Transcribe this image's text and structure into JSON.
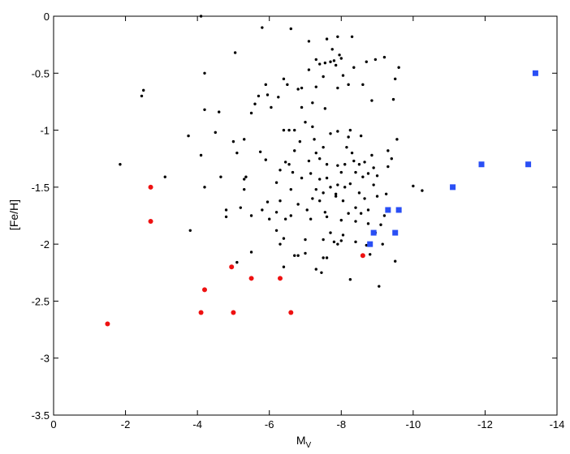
{
  "chart_data": {
    "type": "scatter",
    "title": "",
    "xlabel": "M",
    "xlabel_sub": "V",
    "ylabel": "[Fe/H]",
    "xlim": [
      0,
      -14
    ],
    "ylim": [
      -3.5,
      0
    ],
    "x_ticks": [
      0,
      -2,
      -4,
      -6,
      -8,
      -10,
      -12,
      -14
    ],
    "x_tick_labels": [
      "0",
      "-2",
      "-4",
      "-6",
      "-8",
      "-10",
      "-12",
      "-14"
    ],
    "y_ticks": [
      0,
      -0.5,
      -1,
      -1.5,
      -2,
      -2.5,
      -3,
      -3.5
    ],
    "y_tick_labels": [
      "0",
      "-0.5",
      "-1",
      "-1.5",
      "-2",
      "-2.5",
      "-3",
      "-3.5"
    ],
    "grid": false,
    "series": [
      {
        "color": "#000000",
        "marker": "circle",
        "size": 3,
        "points": [
          [
            -4.1,
            0.0
          ],
          [
            -5.8,
            -0.1
          ],
          [
            -6.6,
            -0.11
          ],
          [
            -7.1,
            -0.22
          ],
          [
            -7.6,
            -0.2
          ],
          [
            -7.9,
            -0.18
          ],
          [
            -8.3,
            -0.18
          ],
          [
            -5.05,
            -0.32
          ],
          [
            -7.75,
            -0.29
          ],
          [
            -7.95,
            -0.34
          ],
          [
            -7.8,
            -0.39
          ],
          [
            -8.0,
            -0.37
          ],
          [
            -7.3,
            -0.38
          ],
          [
            -8.95,
            -0.38
          ],
          [
            -9.2,
            -0.36
          ],
          [
            -7.1,
            -0.47
          ],
          [
            -7.4,
            -0.42
          ],
          [
            -7.55,
            -0.41
          ],
          [
            -7.7,
            -0.4
          ],
          [
            -7.85,
            -0.43
          ],
          [
            -8.35,
            -0.45
          ],
          [
            -8.7,
            -0.4
          ],
          [
            -9.6,
            -0.45
          ],
          [
            -7.5,
            -0.53
          ],
          [
            -8.05,
            -0.52
          ],
          [
            -9.5,
            -0.55
          ],
          [
            -2.5,
            -0.65
          ],
          [
            -2.45,
            -0.7
          ],
          [
            -4.2,
            -0.5
          ],
          [
            -6.4,
            -0.55
          ],
          [
            -6.5,
            -0.6
          ],
          [
            -5.9,
            -0.6
          ],
          [
            -6.9,
            -0.63
          ],
          [
            -7.3,
            -0.62
          ],
          [
            -7.9,
            -0.63
          ],
          [
            -8.2,
            -0.6
          ],
          [
            -8.6,
            -0.6
          ],
          [
            -9.45,
            -0.73
          ],
          [
            -8.85,
            -0.74
          ],
          [
            -6.8,
            -0.64
          ],
          [
            -6.25,
            -0.71
          ],
          [
            -5.7,
            -0.7
          ],
          [
            -5.95,
            -0.69
          ],
          [
            -5.6,
            -0.77
          ],
          [
            -7.2,
            -0.76
          ],
          [
            -7.55,
            -0.81
          ],
          [
            -6.05,
            -0.8
          ],
          [
            -6.9,
            -0.8
          ],
          [
            -4.2,
            -0.82
          ],
          [
            -4.6,
            -0.84
          ],
          [
            -5.5,
            -0.85
          ],
          [
            -3.75,
            -1.05
          ],
          [
            -4.5,
            -1.02
          ],
          [
            -6.4,
            -1.0
          ],
          [
            -6.55,
            -1.0
          ],
          [
            -6.7,
            -1.0
          ],
          [
            -7.0,
            -0.93
          ],
          [
            -7.2,
            -0.97
          ],
          [
            -7.7,
            -1.03
          ],
          [
            -7.9,
            -1.01
          ],
          [
            -8.2,
            -1.06
          ],
          [
            -8.25,
            -1.0
          ],
          [
            -8.55,
            -1.05
          ],
          [
            -9.55,
            -1.08
          ],
          [
            -5.0,
            -1.1
          ],
          [
            -5.3,
            -1.08
          ],
          [
            -6.85,
            -1.1
          ],
          [
            -7.25,
            -1.08
          ],
          [
            -7.5,
            -1.15
          ],
          [
            -6.7,
            -1.18
          ],
          [
            -8.15,
            -1.15
          ],
          [
            -8.3,
            -1.2
          ],
          [
            -9.3,
            -1.18
          ],
          [
            -9.4,
            -1.25
          ],
          [
            -7.3,
            -1.2
          ],
          [
            -7.1,
            -1.27
          ],
          [
            -7.4,
            -1.25
          ],
          [
            -7.6,
            -1.3
          ],
          [
            -7.9,
            -1.31
          ],
          [
            -8.1,
            -1.3
          ],
          [
            -8.35,
            -1.27
          ],
          [
            -8.5,
            -1.3
          ],
          [
            -8.85,
            -1.22
          ],
          [
            -1.85,
            -1.3
          ],
          [
            -4.1,
            -1.22
          ],
          [
            -5.1,
            -1.2
          ],
          [
            -5.75,
            -1.19
          ],
          [
            -5.9,
            -1.26
          ],
          [
            -6.45,
            -1.28
          ],
          [
            -6.55,
            -1.3
          ],
          [
            -8.65,
            -1.28
          ],
          [
            -8.9,
            -1.33
          ],
          [
            -9.3,
            -1.32
          ],
          [
            -4.65,
            -1.41
          ],
          [
            -5.35,
            -1.41
          ],
          [
            -5.3,
            -1.43
          ],
          [
            -6.3,
            -1.35
          ],
          [
            -6.65,
            -1.37
          ],
          [
            -6.2,
            -1.46
          ],
          [
            -6.9,
            -1.42
          ],
          [
            -7.15,
            -1.38
          ],
          [
            -7.4,
            -1.43
          ],
          [
            -7.6,
            -1.42
          ],
          [
            -8.0,
            -1.37
          ],
          [
            -8.4,
            -1.37
          ],
          [
            -8.6,
            -1.41
          ],
          [
            -8.75,
            -1.38
          ],
          [
            -9.0,
            -1.4
          ],
          [
            -3.1,
            -1.41
          ],
          [
            -4.2,
            -1.5
          ],
          [
            -5.3,
            -1.52
          ],
          [
            -6.6,
            -1.52
          ],
          [
            -7.3,
            -1.52
          ],
          [
            -7.5,
            -1.55
          ],
          [
            -7.7,
            -1.5
          ],
          [
            -7.9,
            -1.48
          ],
          [
            -8.1,
            -1.5
          ],
          [
            -8.25,
            -1.47
          ],
          [
            -8.9,
            -1.48
          ],
          [
            -10.0,
            -1.49
          ],
          [
            -10.25,
            -1.53
          ],
          [
            -6.3,
            -1.62
          ],
          [
            -6.8,
            -1.65
          ],
          [
            -7.2,
            -1.6
          ],
          [
            -7.4,
            -1.62
          ],
          [
            -7.85,
            -1.56
          ],
          [
            -7.85,
            -1.58
          ],
          [
            -8.05,
            -1.62
          ],
          [
            -8.5,
            -1.55
          ],
          [
            -8.65,
            -1.6
          ],
          [
            -9.0,
            -1.58
          ],
          [
            -9.25,
            -1.56
          ],
          [
            -5.95,
            -1.63
          ],
          [
            -5.2,
            -1.68
          ],
          [
            -4.8,
            -1.7
          ],
          [
            -5.8,
            -1.7
          ],
          [
            -6.2,
            -1.72
          ],
          [
            -7.05,
            -1.7
          ],
          [
            -7.55,
            -1.72
          ],
          [
            -8.2,
            -1.73
          ],
          [
            -8.4,
            -1.68
          ],
          [
            -8.55,
            -1.73
          ],
          [
            -8.75,
            -1.7
          ],
          [
            -9.2,
            -1.75
          ],
          [
            -4.8,
            -1.76
          ],
          [
            -5.5,
            -1.75
          ],
          [
            -6.0,
            -1.78
          ],
          [
            -6.45,
            -1.78
          ],
          [
            -6.6,
            -1.75
          ],
          [
            -7.15,
            -1.78
          ],
          [
            -7.6,
            -1.76
          ],
          [
            -8.0,
            -1.79
          ],
          [
            -8.4,
            -1.8
          ],
          [
            -8.75,
            -1.82
          ],
          [
            -9.1,
            -1.83
          ],
          [
            -3.8,
            -1.88
          ],
          [
            -6.2,
            -1.88
          ],
          [
            -7.7,
            -1.9
          ],
          [
            -8.05,
            -1.92
          ],
          [
            -6.4,
            -1.95
          ],
          [
            -7.0,
            -1.96
          ],
          [
            -7.5,
            -1.96
          ],
          [
            -7.8,
            -1.98
          ],
          [
            -8.0,
            -1.97
          ],
          [
            -8.4,
            -1.98
          ],
          [
            -8.7,
            -2.01
          ],
          [
            -6.3,
            -2.0
          ],
          [
            -7.9,
            -2.0
          ],
          [
            -8.95,
            -1.9
          ],
          [
            -9.15,
            -2.0
          ],
          [
            -8.8,
            -2.09
          ],
          [
            -9.5,
            -2.15
          ],
          [
            -5.5,
            -2.07
          ],
          [
            -5.1,
            -2.16
          ],
          [
            -6.7,
            -2.1
          ],
          [
            -6.8,
            -2.1
          ],
          [
            -7.0,
            -2.08
          ],
          [
            -7.5,
            -2.12
          ],
          [
            -7.6,
            -2.12
          ],
          [
            -6.4,
            -2.2
          ],
          [
            -7.3,
            -2.22
          ],
          [
            -7.45,
            -2.25
          ],
          [
            -8.25,
            -2.31
          ],
          [
            -9.05,
            -2.37
          ]
        ]
      },
      {
        "color": "#ee1111",
        "marker": "circle",
        "size": 5,
        "points": [
          [
            -2.7,
            -1.5
          ],
          [
            -2.7,
            -1.8
          ],
          [
            -8.6,
            -2.1
          ],
          [
            -4.95,
            -2.2
          ],
          [
            -5.5,
            -2.3
          ],
          [
            -6.3,
            -2.3
          ],
          [
            -4.2,
            -2.4
          ],
          [
            -4.1,
            -2.6
          ],
          [
            -5.0,
            -2.6
          ],
          [
            -6.6,
            -2.6
          ],
          [
            -1.5,
            -2.7
          ]
        ]
      },
      {
        "color": "#2a4ff5",
        "marker": "square",
        "size": 7,
        "points": [
          [
            -13.4,
            -0.5
          ],
          [
            -11.9,
            -1.3
          ],
          [
            -13.2,
            -1.3
          ],
          [
            -11.1,
            -1.5
          ],
          [
            -9.3,
            -1.7
          ],
          [
            -9.6,
            -1.7
          ],
          [
            -8.9,
            -1.9
          ],
          [
            -9.5,
            -1.9
          ],
          [
            -8.8,
            -2.0
          ]
        ]
      }
    ]
  }
}
